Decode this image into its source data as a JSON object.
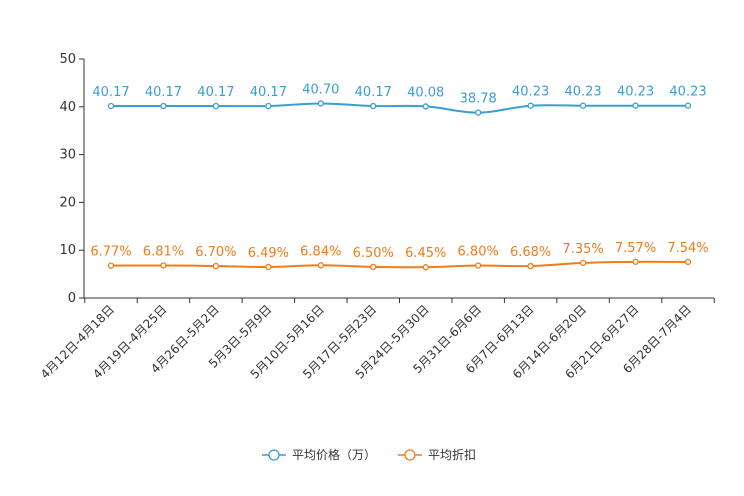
{
  "chart_data": {
    "type": "line",
    "categories": [
      "4月12日-4月18日",
      "4月19日-4月25日",
      "4月26日-5月2日",
      "5月3日-5月9日",
      "5月10日-5月16日",
      "5月17日-5月23日",
      "5月24日-5月30日",
      "5月31日-6月6日",
      "6月7日-6月13日",
      "6月14日-6月20日",
      "6月21日-6月27日",
      "6月28日-7月4日"
    ],
    "ylim": [
      0,
      50
    ],
    "yticks": [
      0,
      10,
      20,
      30,
      40,
      50
    ],
    "series": [
      {
        "name": "平均价格（万）",
        "color": "#3a9fd0",
        "values": [
          40.17,
          40.17,
          40.17,
          40.17,
          40.7,
          40.17,
          40.08,
          38.78,
          40.23,
          40.23,
          40.23,
          40.23
        ],
        "labels": [
          "40.17",
          "40.17",
          "40.17",
          "40.17",
          "40.70",
          "40.17",
          "40.08",
          "38.78",
          "40.23",
          "40.23",
          "40.23",
          "40.23"
        ]
      },
      {
        "name": "平均折扣",
        "color": "#f07c1a",
        "values": [
          6.77,
          6.81,
          6.7,
          6.49,
          6.84,
          6.5,
          6.45,
          6.8,
          6.68,
          7.35,
          7.57,
          7.54
        ],
        "labels": [
          "6.77%",
          "6.81%",
          "6.70%",
          "6.49%",
          "6.84%",
          "6.50%",
          "6.45%",
          "6.80%",
          "6.68%",
          "7.35%",
          "7.57%",
          "7.54%"
        ]
      }
    ],
    "legend_position": "bottom-center"
  }
}
